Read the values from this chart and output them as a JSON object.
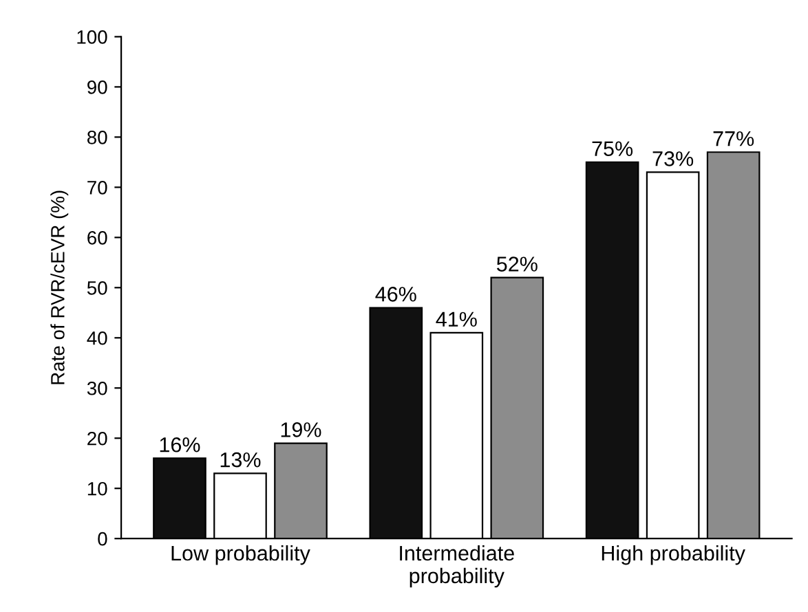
{
  "chart_data": {
    "type": "bar",
    "ylabel": "Rate of RVR/cEVR (%)",
    "categories": [
      "Low probability",
      "Intermediate\nprobability",
      "High probability"
    ],
    "series": [
      {
        "color": "#111111",
        "values": [
          16,
          46,
          75
        ],
        "value_labels": [
          "16%",
          "46%",
          "75%"
        ]
      },
      {
        "color": "#ffffff",
        "values": [
          13,
          41,
          73
        ],
        "value_labels": [
          "13%",
          "41%",
          "73%"
        ]
      },
      {
        "color": "#8c8c8c",
        "values": [
          19,
          52,
          77
        ],
        "value_labels": [
          "19%",
          "52%",
          "77%"
        ]
      }
    ],
    "ylim": [
      0,
      100
    ],
    "yticks": [
      0,
      10,
      20,
      30,
      40,
      50,
      60,
      70,
      80,
      90,
      100
    ],
    "grid": false
  }
}
